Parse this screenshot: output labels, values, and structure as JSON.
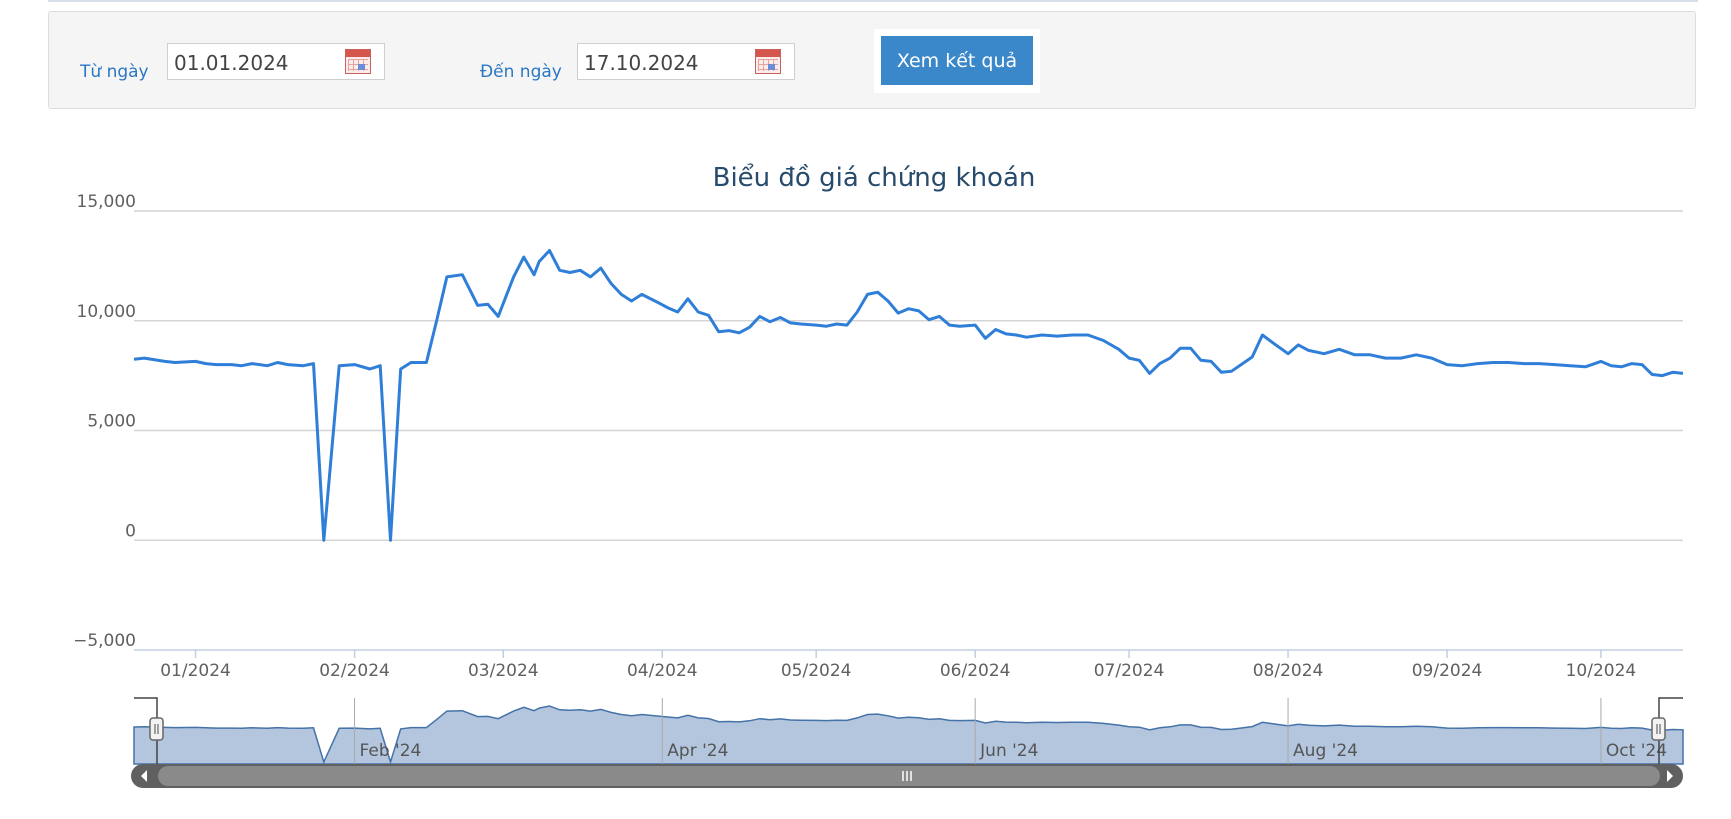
{
  "filter": {
    "from_label": "Từ ngày",
    "from_value": "01.01.2024",
    "to_label": "Đến ngày",
    "to_value": "17.10.2024",
    "submit_label": "Xem kết quả"
  },
  "chart_data": {
    "type": "line",
    "title": "Biểu đồ giá chứng khoán",
    "ylim": [
      -5000,
      15000
    ],
    "yticks": [
      "15,000",
      "10,000",
      "5,000",
      "0",
      "−5,000"
    ],
    "ytick_values": [
      15000,
      10000,
      5000,
      0,
      -5000
    ],
    "xticks": [
      "01/2024",
      "02/2024",
      "03/2024",
      "04/2024",
      "05/2024",
      "06/2024",
      "07/2024",
      "08/2024",
      "09/2024",
      "10/2024"
    ],
    "xtick_dates": [
      "2024-01-01",
      "2024-02-01",
      "2024-03-01",
      "2024-04-01",
      "2024-05-01",
      "2024-06-01",
      "2024-07-01",
      "2024-08-01",
      "2024-09-01",
      "2024-10-01"
    ],
    "xlim": [
      "2023-12-20",
      "2024-10-17"
    ],
    "grid": true,
    "color": "#2f7ed8",
    "navigator": {
      "labels": [
        "Feb '24",
        "Apr '24",
        "Jun '24",
        "Aug '24",
        "Oct '24"
      ],
      "label_dates": [
        "2024-02-01",
        "2024-04-01",
        "2024-06-01",
        "2024-08-01",
        "2024-10-01"
      ],
      "fill": "#b3c6de"
    },
    "series": [
      {
        "x": [
          "2023-12-20",
          "2023-12-22",
          "2023-12-26",
          "2023-12-28",
          "2024-01-01",
          "2024-01-03",
          "2024-01-05",
          "2024-01-08",
          "2024-01-10",
          "2024-01-12",
          "2024-01-15",
          "2024-01-17",
          "2024-01-19",
          "2024-01-22",
          "2024-01-24",
          "2024-01-26",
          "2024-01-29",
          "2024-02-01",
          "2024-02-04",
          "2024-02-06",
          "2024-02-08",
          "2024-02-10",
          "2024-02-12",
          "2024-02-15",
          "2024-02-17",
          "2024-02-19",
          "2024-02-22",
          "2024-02-25",
          "2024-02-27",
          "2024-02-29",
          "2024-03-03",
          "2024-03-05",
          "2024-03-07",
          "2024-03-08",
          "2024-03-10",
          "2024-03-12",
          "2024-03-14",
          "2024-03-16",
          "2024-03-18",
          "2024-03-20",
          "2024-03-22",
          "2024-03-24",
          "2024-03-26",
          "2024-03-28",
          "2024-03-31",
          "2024-04-02",
          "2024-04-04",
          "2024-04-06",
          "2024-04-08",
          "2024-04-10",
          "2024-04-12",
          "2024-04-14",
          "2024-04-16",
          "2024-04-18",
          "2024-04-20",
          "2024-04-22",
          "2024-04-24",
          "2024-04-26",
          "2024-04-28",
          "2024-05-01",
          "2024-05-03",
          "2024-05-05",
          "2024-05-07",
          "2024-05-09",
          "2024-05-11",
          "2024-05-13",
          "2024-05-15",
          "2024-05-17",
          "2024-05-19",
          "2024-05-21",
          "2024-05-23",
          "2024-05-25",
          "2024-05-27",
          "2024-05-29",
          "2024-06-01",
          "2024-06-03",
          "2024-06-05",
          "2024-06-07",
          "2024-06-09",
          "2024-06-11",
          "2024-06-14",
          "2024-06-17",
          "2024-06-20",
          "2024-06-23",
          "2024-06-26",
          "2024-06-29",
          "2024-07-01",
          "2024-07-03",
          "2024-07-05",
          "2024-07-07",
          "2024-07-09",
          "2024-07-11",
          "2024-07-13",
          "2024-07-15",
          "2024-07-17",
          "2024-07-19",
          "2024-07-21",
          "2024-07-25",
          "2024-07-27",
          "2024-07-29",
          "2024-08-01",
          "2024-08-03",
          "2024-08-05",
          "2024-08-08",
          "2024-08-11",
          "2024-08-14",
          "2024-08-17",
          "2024-08-20",
          "2024-08-23",
          "2024-08-26",
          "2024-08-29",
          "2024-09-01",
          "2024-09-04",
          "2024-09-07",
          "2024-09-10",
          "2024-09-13",
          "2024-09-16",
          "2024-09-19",
          "2024-09-22",
          "2024-09-25",
          "2024-09-28",
          "2024-10-01",
          "2024-10-03",
          "2024-10-05",
          "2024-10-07",
          "2024-10-09",
          "2024-10-11",
          "2024-10-13",
          "2024-10-15",
          "2024-10-17"
        ],
        "values": [
          8250,
          8300,
          8150,
          8100,
          8150,
          8050,
          8000,
          8000,
          7950,
          8050,
          7950,
          8100,
          8000,
          7950,
          8050,
          0,
          7950,
          8000,
          7800,
          7950,
          0,
          7800,
          8100,
          8100,
          10000,
          12000,
          12100,
          10700,
          10750,
          10200,
          12000,
          12900,
          12100,
          12700,
          13200,
          12300,
          12200,
          12300,
          12000,
          12400,
          11700,
          11200,
          10900,
          11200,
          10850,
          10600,
          10400,
          11000,
          10400,
          10250,
          9500,
          9550,
          9450,
          9700,
          10200,
          9950,
          10150,
          9900,
          9850,
          9800,
          9750,
          9850,
          9800,
          10400,
          11200,
          11300,
          10900,
          10350,
          10550,
          10450,
          10050,
          10200,
          9800,
          9750,
          9800,
          9200,
          9600,
          9400,
          9350,
          9250,
          9350,
          9300,
          9350,
          9350,
          9100,
          8700,
          8300,
          8200,
          7600,
          8050,
          8300,
          8750,
          8750,
          8200,
          8150,
          7650,
          7700,
          8350,
          9350,
          9000,
          8500,
          8900,
          8650,
          8500,
          8700,
          8450,
          8450,
          8300,
          8300,
          8450,
          8300,
          8000,
          7950,
          8050,
          8100,
          8100,
          8050,
          8050,
          8000,
          7950,
          7900,
          8150,
          7950,
          7900,
          8050,
          8000,
          7550,
          7500,
          7650,
          7600
        ]
      }
    ]
  }
}
